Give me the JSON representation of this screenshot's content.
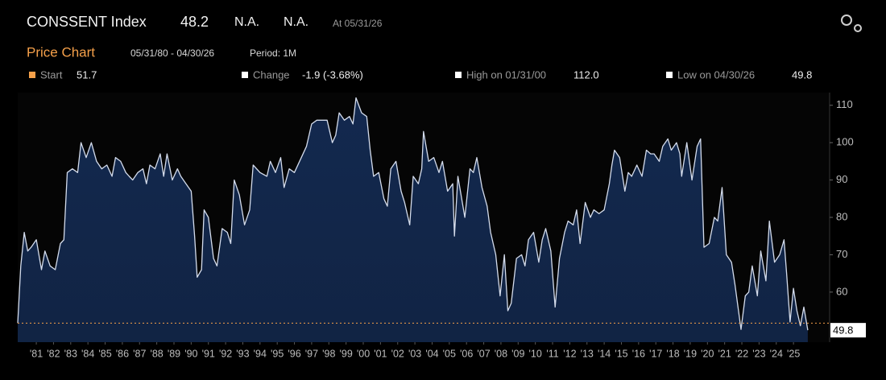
{
  "header": {
    "title": "CONSSENT Index",
    "last": "48.2",
    "field2": "N.A.",
    "field3": "N.A.",
    "asof": "At 05/31/26",
    "section": "Price Chart",
    "range": "05/31/80 - 04/30/26",
    "period": "Period: 1M",
    "stats": [
      {
        "label": "Start",
        "value": "51.7"
      },
      {
        "label": "Change",
        "value": "-1.9 (-3.68%)"
      },
      {
        "label": "High on 01/31/00",
        "value": "112.0"
      },
      {
        "label": "Low on 04/30/26",
        "value": "49.8"
      }
    ]
  },
  "chart_data": {
    "type": "area",
    "line_color": "#d4dcec",
    "fill_color": "#13294f",
    "x": [
      1980.42,
      1980.6,
      1980.8,
      1981.0,
      1981.2,
      1981.5,
      1981.8,
      1982.0,
      1982.3,
      1982.6,
      1982.9,
      1983.1,
      1983.3,
      1983.6,
      1983.9,
      1984.1,
      1984.4,
      1984.7,
      1985.0,
      1985.3,
      1985.6,
      1985.9,
      1986.1,
      1986.4,
      1986.7,
      1986.9,
      1987.1,
      1987.4,
      1987.7,
      1987.9,
      1988.1,
      1988.4,
      1988.7,
      1988.9,
      1989.1,
      1989.4,
      1989.7,
      1989.9,
      1990.2,
      1990.5,
      1990.7,
      1990.85,
      1991.1,
      1991.25,
      1991.5,
      1991.8,
      1992.0,
      1992.3,
      1992.6,
      1992.8,
      1993.0,
      1993.3,
      1993.6,
      1993.9,
      1994.1,
      1994.5,
      1994.9,
      1995.1,
      1995.4,
      1995.7,
      1995.9,
      1996.2,
      1996.5,
      1996.9,
      1997.2,
      1997.5,
      1997.8,
      1998.1,
      1998.4,
      1998.7,
      1998.9,
      1999.1,
      1999.4,
      1999.7,
      1999.9,
      2000.08,
      2000.4,
      2000.7,
      2000.9,
      2001.1,
      2001.4,
      2001.7,
      2001.9,
      2002.1,
      2002.4,
      2002.7,
      2002.9,
      2003.2,
      2003.4,
      2003.7,
      2003.9,
      2004.0,
      2004.3,
      2004.6,
      2004.9,
      2005.1,
      2005.4,
      2005.7,
      2005.8,
      2006.0,
      2006.4,
      2006.7,
      2006.9,
      2007.1,
      2007.4,
      2007.7,
      2007.9,
      2008.2,
      2008.45,
      2008.7,
      2008.9,
      2009.1,
      2009.4,
      2009.7,
      2009.9,
      2010.1,
      2010.4,
      2010.7,
      2010.9,
      2011.1,
      2011.4,
      2011.65,
      2011.9,
      2012.2,
      2012.4,
      2012.7,
      2012.9,
      2013.1,
      2013.4,
      2013.7,
      2013.9,
      2014.2,
      2014.5,
      2014.8,
      2014.95,
      2015.1,
      2015.4,
      2015.7,
      2015.9,
      2016.1,
      2016.4,
      2016.7,
      2016.95,
      2017.2,
      2017.4,
      2017.7,
      2017.9,
      2018.2,
      2018.4,
      2018.7,
      2018.9,
      2019.0,
      2019.3,
      2019.6,
      2019.9,
      2020.1,
      2020.3,
      2020.6,
      2020.9,
      2021.1,
      2021.35,
      2021.6,
      2021.9,
      2022.1,
      2022.45,
      2022.7,
      2022.9,
      2023.1,
      2023.4,
      2023.6,
      2023.9,
      2024.1,
      2024.4,
      2024.7,
      2024.95,
      2025.1,
      2025.3,
      2025.5,
      2025.7,
      2025.9,
      2026.1,
      2026.33
    ],
    "values": [
      51.7,
      67,
      76,
      71,
      72,
      74,
      66,
      71,
      67,
      66,
      73,
      74,
      92,
      93,
      92,
      100,
      96,
      100,
      95,
      93,
      94,
      91,
      96,
      95,
      92,
      91,
      90,
      92,
      93,
      89,
      94,
      93,
      97,
      91,
      97,
      90,
      93,
      91,
      89,
      87,
      75,
      64,
      66,
      82,
      80,
      69,
      67,
      77,
      76,
      73,
      90,
      86,
      78,
      82,
      94,
      92,
      91,
      95,
      92,
      96,
      88,
      93,
      92,
      96,
      99,
      105,
      106,
      106,
      106,
      100,
      102,
      108,
      106,
      107,
      105,
      112,
      108,
      107,
      98,
      91,
      92,
      85,
      83,
      93,
      95,
      87,
      84,
      78,
      91,
      89,
      93,
      103,
      95,
      96,
      92,
      95,
      87,
      89,
      75,
      91,
      80,
      93,
      92,
      96,
      88,
      83,
      76,
      70,
      59,
      70,
      55,
      57,
      69,
      70,
      67,
      74,
      76,
      68,
      74,
      77,
      71,
      56,
      69,
      76,
      79,
      78,
      82,
      73,
      84,
      80,
      82,
      81,
      82,
      89,
      94,
      98,
      96,
      87,
      92,
      91,
      94,
      91,
      98,
      97,
      97,
      95,
      99,
      101,
      98,
      100,
      97,
      91,
      100,
      90,
      99,
      101,
      72,
      73,
      80,
      79,
      88,
      70,
      68,
      62,
      50,
      59,
      60,
      67,
      59,
      71,
      63,
      79,
      68,
      70,
      74,
      65,
      52,
      61,
      55,
      51,
      56,
      49.8
    ],
    "xlim": [
      1980.42,
      2027.6
    ],
    "ylim": [
      46.6,
      113.4
    ],
    "yticks": [
      60,
      70,
      80,
      90,
      100,
      110
    ],
    "xticks": [
      {
        "value": 1981.5,
        "label": "'81"
      },
      {
        "value": 1982.5,
        "label": "'82"
      },
      {
        "value": 1983.5,
        "label": "'83"
      },
      {
        "value": 1984.5,
        "label": "'84"
      },
      {
        "value": 1985.5,
        "label": "'85"
      },
      {
        "value": 1986.5,
        "label": "'86"
      },
      {
        "value": 1987.5,
        "label": "'87"
      },
      {
        "value": 1988.5,
        "label": "'88"
      },
      {
        "value": 1989.5,
        "label": "'89"
      },
      {
        "value": 1990.5,
        "label": "'90"
      },
      {
        "value": 1991.5,
        "label": "'91"
      },
      {
        "value": 1992.5,
        "label": "'92"
      },
      {
        "value": 1993.5,
        "label": "'93"
      },
      {
        "value": 1994.5,
        "label": "'94"
      },
      {
        "value": 1995.5,
        "label": "'95"
      },
      {
        "value": 1996.5,
        "label": "'96"
      },
      {
        "value": 1997.5,
        "label": "'97"
      },
      {
        "value": 1998.5,
        "label": "'98"
      },
      {
        "value": 1999.5,
        "label": "'99"
      },
      {
        "value": 2000.5,
        "label": "'00"
      },
      {
        "value": 2001.5,
        "label": "'01"
      },
      {
        "value": 2002.5,
        "label": "'02"
      },
      {
        "value": 2003.5,
        "label": "'03"
      },
      {
        "value": 2004.5,
        "label": "'04"
      },
      {
        "value": 2005.5,
        "label": "'05"
      },
      {
        "value": 2006.5,
        "label": "'06"
      },
      {
        "value": 2007.5,
        "label": "'07"
      },
      {
        "value": 2008.5,
        "label": "'08"
      },
      {
        "value": 2009.5,
        "label": "'09"
      },
      {
        "value": 2010.5,
        "label": "'10"
      },
      {
        "value": 2011.5,
        "label": "'11"
      },
      {
        "value": 2012.5,
        "label": "'12"
      },
      {
        "value": 2013.5,
        "label": "'13"
      },
      {
        "value": 2014.5,
        "label": "'14"
      },
      {
        "value": 2015.5,
        "label": "'15"
      },
      {
        "value": 2016.5,
        "label": "'16"
      },
      {
        "value": 2017.5,
        "label": "'17"
      },
      {
        "value": 2018.5,
        "label": "'18"
      },
      {
        "value": 2019.5,
        "label": "'19"
      },
      {
        "value": 2020.5,
        "label": "'20"
      },
      {
        "value": 2021.5,
        "label": "'21"
      },
      {
        "value": 2022.5,
        "label": "'22"
      },
      {
        "value": 2023.5,
        "label": "'23"
      },
      {
        "value": 2024.5,
        "label": "'24"
      },
      {
        "value": 2025.5,
        "label": "'25"
      }
    ]
  }
}
